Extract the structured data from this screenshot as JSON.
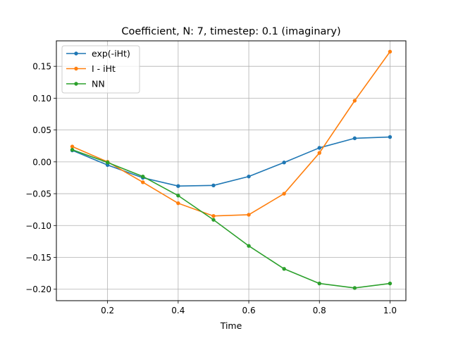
{
  "chart_data": {
    "type": "line",
    "title": "Coefficient, N: 7, timestep: 0.1 (imaginary)",
    "xlabel": "Time",
    "ylabel": "",
    "xlim": [
      0.055,
      1.045
    ],
    "ylim": [
      -0.218,
      0.19
    ],
    "xticks": [
      0.2,
      0.4,
      0.6,
      0.8,
      1.0
    ],
    "xtick_labels": [
      "0.2",
      "0.4",
      "0.6",
      "0.8",
      "1.0"
    ],
    "yticks": [
      0.15,
      0.1,
      0.05,
      0.0,
      -0.05,
      -0.1,
      -0.15,
      -0.2
    ],
    "ytick_labels": [
      "0.15",
      "0.10",
      "0.05",
      "0.00",
      "−0.05",
      "−0.10",
      "−0.15",
      "−0.20"
    ],
    "grid": true,
    "legend_position": "top-left",
    "x": [
      0.1,
      0.2,
      0.3,
      0.4,
      0.5,
      0.6,
      0.7,
      0.8,
      0.9,
      1.0
    ],
    "series": [
      {
        "name": "exp(-iHt)",
        "color": "#1f77b4",
        "values": [
          0.018,
          -0.005,
          -0.025,
          -0.038,
          -0.037,
          -0.023,
          -0.001,
          0.022,
          0.037,
          0.039
        ]
      },
      {
        "name": "I - iHt",
        "color": "#ff7f0e",
        "values": [
          0.024,
          0.0,
          -0.032,
          -0.065,
          -0.085,
          -0.083,
          -0.05,
          0.014,
          0.096,
          0.173
        ]
      },
      {
        "name": "NN",
        "color": "#2ca02c",
        "values": [
          0.019,
          -0.001,
          -0.023,
          -0.053,
          -0.091,
          -0.132,
          -0.168,
          -0.191,
          -0.198,
          -0.191
        ]
      }
    ]
  }
}
